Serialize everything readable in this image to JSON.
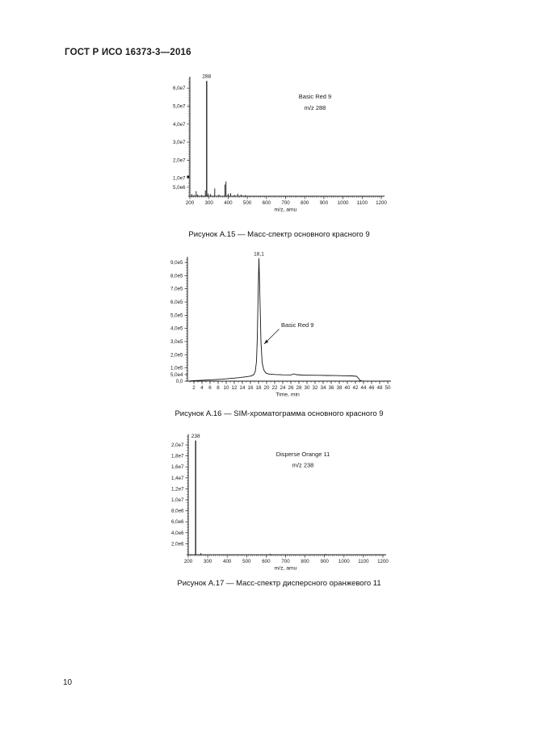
{
  "page": {
    "header_title": "ГОСТ Р ИСО 16373-3—2016",
    "page_number": "10"
  },
  "figures": [
    {
      "caption": "Рисунок А.15 — Масс-спектр основного красного 9"
    },
    {
      "caption": "Рисунок А.16 — SIM-хроматограмма основного красного 9"
    },
    {
      "caption": "Рисунок А.17 — Масс-спектр дисперсного оранжевого 11"
    }
  ],
  "chart_data": [
    {
      "type": "bar",
      "subtype": "mass-spectrum",
      "annotation": [
        "Basic Red 9",
        "m/z 288"
      ],
      "peak_label": "288",
      "peak_label_x": 288,
      "xlabel": "m/z, amu",
      "xlim": [
        200,
        1200
      ],
      "ylim": [
        0,
        65000000
      ],
      "grid": false,
      "x_ticks": [
        200,
        300,
        400,
        500,
        600,
        700,
        800,
        900,
        1000,
        1100,
        1200
      ],
      "y_ticks": [
        {
          "v": 5000000,
          "label": "5,0e6"
        },
        {
          "v": 10000000,
          "label": "1,0e7"
        },
        {
          "v": 20000000,
          "label": "2,0e7"
        },
        {
          "v": 30000000,
          "label": "3,0e7"
        },
        {
          "v": 40000000,
          "label": "4,0e7"
        },
        {
          "v": 50000000,
          "label": "5,0e7"
        },
        {
          "v": 60000000,
          "label": "6,0e7"
        }
      ],
      "peaks": [
        [
          210,
          1200000
        ],
        [
          222,
          700000
        ],
        [
          233,
          2800000
        ],
        [
          241,
          1000000
        ],
        [
          262,
          700000
        ],
        [
          281,
          3200000
        ],
        [
          288,
          64000000
        ],
        [
          296,
          1500000
        ],
        [
          308,
          1200000
        ],
        [
          330,
          4300000
        ],
        [
          352,
          900000
        ],
        [
          383,
          6500000
        ],
        [
          389,
          8200000
        ],
        [
          400,
          1300000
        ],
        [
          413,
          1700000
        ],
        [
          433,
          700000
        ],
        [
          450,
          1400000
        ],
        [
          468,
          900000
        ],
        [
          490,
          600000
        ]
      ]
    },
    {
      "type": "line",
      "subtype": "sim-chromatogram",
      "annotation_arrow": {
        "text": "Basic Red 9"
      },
      "peak_label": "18,1",
      "peak_label_x": 18.1,
      "xlabel": "Time, min",
      "xlim": [
        0,
        50
      ],
      "ylim": [
        0,
        930000
      ],
      "grid": false,
      "x_ticks": [
        2,
        4,
        6,
        8,
        10,
        12,
        14,
        16,
        18,
        20,
        22,
        24,
        26,
        28,
        30,
        32,
        34,
        36,
        38,
        40,
        42,
        44,
        46,
        48,
        50
      ],
      "y_ticks": [
        {
          "v": 0,
          "label": "0,0"
        },
        {
          "v": 50000,
          "label": "5,0e4"
        },
        {
          "v": 100000,
          "label": "1,0e5"
        },
        {
          "v": 200000,
          "label": "2,0e5"
        },
        {
          "v": 300000,
          "label": "3,0e5"
        },
        {
          "v": 400000,
          "label": "4,0e5"
        },
        {
          "v": 500000,
          "label": "5,0e5"
        },
        {
          "v": 600000,
          "label": "6,0e5"
        },
        {
          "v": 700000,
          "label": "7,0e5"
        },
        {
          "v": 800000,
          "label": "8,0e5"
        },
        {
          "v": 900000,
          "label": "9,0e5"
        }
      ],
      "points": [
        [
          1,
          2000
        ],
        [
          3,
          5000
        ],
        [
          5,
          8000
        ],
        [
          7,
          11000
        ],
        [
          9,
          15000
        ],
        [
          11,
          20000
        ],
        [
          13,
          26000
        ],
        [
          15,
          33000
        ],
        [
          16,
          38000
        ],
        [
          16.8,
          48000
        ],
        [
          17.2,
          75000
        ],
        [
          17.5,
          150000
        ],
        [
          17.7,
          330000
        ],
        [
          17.9,
          650000
        ],
        [
          18.1,
          930000
        ],
        [
          18.35,
          620000
        ],
        [
          18.6,
          300000
        ],
        [
          18.9,
          140000
        ],
        [
          19.3,
          85000
        ],
        [
          19.8,
          62000
        ],
        [
          20.5,
          54000
        ],
        [
          22,
          50000
        ],
        [
          24,
          48000
        ],
        [
          26,
          47000
        ],
        [
          26.8,
          55000
        ],
        [
          27.3,
          49000
        ],
        [
          29,
          46000
        ],
        [
          31,
          45000
        ],
        [
          33,
          44000
        ],
        [
          35,
          43000
        ],
        [
          37,
          42000
        ],
        [
          39,
          41000
        ],
        [
          41,
          40000
        ],
        [
          42.3,
          37000
        ],
        [
          42.8,
          20000
        ],
        [
          43.1,
          5000
        ],
        [
          43.6,
          2000
        ]
      ]
    },
    {
      "type": "bar",
      "subtype": "mass-spectrum",
      "annotation": [
        "Disperse Orange 11",
        "m/z 238"
      ],
      "peak_label": "238",
      "peak_label_x": 238,
      "xlabel": "m/z, amu",
      "xlim": [
        200,
        1200
      ],
      "ylim": [
        0,
        21500000
      ],
      "grid": false,
      "x_ticks": [
        200,
        300,
        400,
        500,
        600,
        700,
        800,
        900,
        1000,
        1100,
        1200
      ],
      "y_ticks": [
        {
          "v": 2000000,
          "label": "2,0e6"
        },
        {
          "v": 4000000,
          "label": "4,0e6"
        },
        {
          "v": 6000000,
          "label": "6,0e6"
        },
        {
          "v": 8000000,
          "label": "8,0e6"
        },
        {
          "v": 10000000,
          "label": "1,0e7"
        },
        {
          "v": 12000000,
          "label": "1,2e7"
        },
        {
          "v": 14000000,
          "label": "1,4e7"
        },
        {
          "v": 16000000,
          "label": "1,6e7"
        },
        {
          "v": 18000000,
          "label": "1,8e7"
        },
        {
          "v": 20000000,
          "label": "2,0e7"
        }
      ],
      "peaks": [
        [
          238,
          20800000
        ],
        [
          265,
          300000
        ],
        [
          620,
          180000
        ],
        [
          905,
          150000
        ]
      ]
    }
  ]
}
